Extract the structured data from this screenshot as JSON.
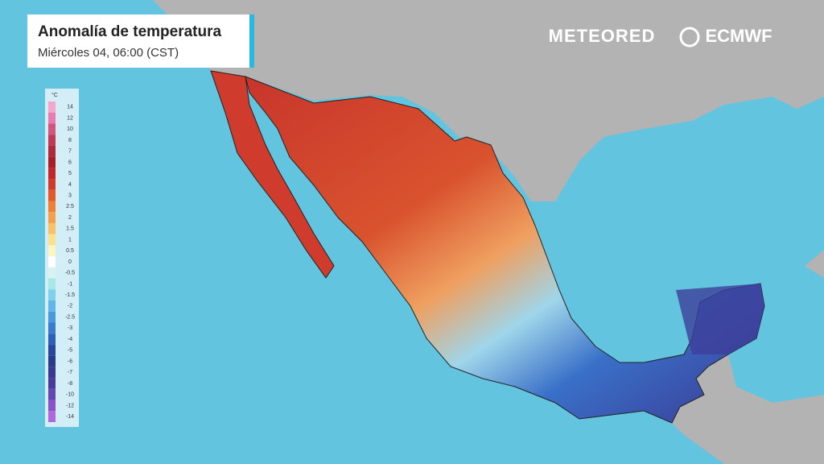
{
  "header": {
    "title": "Anomalía de temperatura",
    "subtitle": "Miércoles 04, 06:00 (CST)"
  },
  "logos": [
    "METEORED",
    "ECMWF"
  ],
  "legend": {
    "unit": "°C",
    "labels": [
      14,
      12,
      10,
      8,
      7,
      6,
      5,
      4,
      3,
      2.5,
      2,
      1.5,
      1,
      0.5,
      0,
      -0.5,
      -1,
      -1.5,
      -2,
      -2.5,
      -3,
      -4,
      -5,
      -6,
      -7,
      -8,
      -10,
      -12,
      -14
    ],
    "colors": [
      "#f4a6cf",
      "#e87bb0",
      "#d2577f",
      "#c03a55",
      "#b02a3a",
      "#a81f2a",
      "#c0262a",
      "#d23a2a",
      "#e25a2c",
      "#ee7f37",
      "#f4a04a",
      "#f8c06a",
      "#fbe08e",
      "#fdf4c4",
      "#ffffff",
      "#d8f4f2",
      "#a8e6ea",
      "#80d0ec",
      "#5fb6ea",
      "#4a98de",
      "#3a7bcf",
      "#2d5fb8",
      "#27469c",
      "#2b3a8a",
      "#3b3891",
      "#4a3a9c",
      "#6646b0",
      "#8a52c8",
      "#b066dc"
    ]
  }
}
